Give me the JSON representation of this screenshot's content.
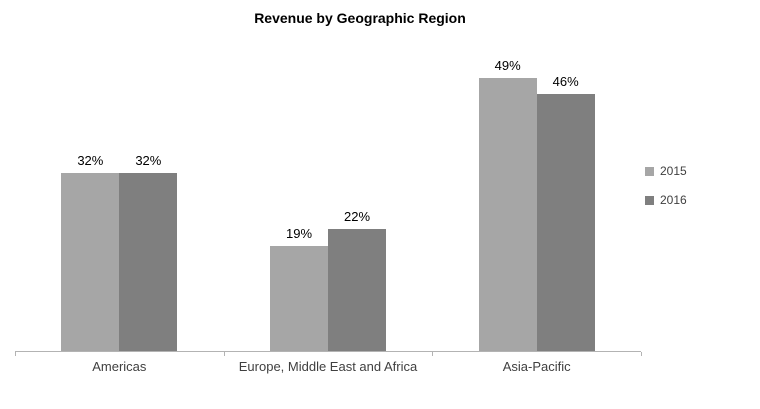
{
  "chart_data": {
    "type": "bar",
    "title": "Revenue by Geographic Region",
    "categories": [
      "Americas",
      "Europe, Middle East and Africa",
      "Asia-Pacific"
    ],
    "series": [
      {
        "name": "2015",
        "color": "#a6a6a6",
        "values": [
          32,
          19,
          49
        ]
      },
      {
        "name": "2016",
        "color": "#7f7f7f",
        "values": [
          32,
          22,
          46
        ]
      }
    ],
    "value_suffix": "%",
    "xlabel": "",
    "ylabel": "",
    "ylim": [
      0,
      55
    ],
    "y_axis_visible": false,
    "grid": false,
    "data_labels": true,
    "legend_position": "right",
    "axis_color": "#b3b3b3"
  }
}
